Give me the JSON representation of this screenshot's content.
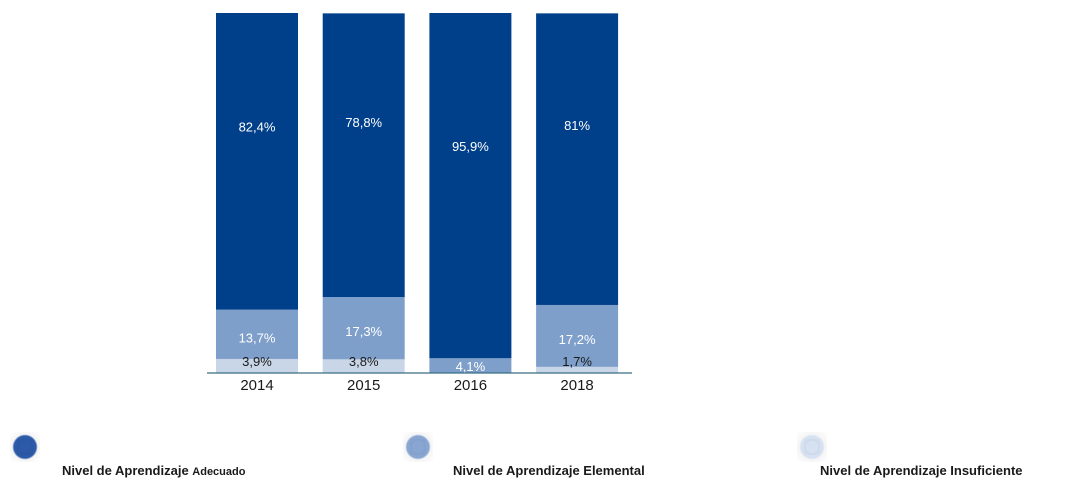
{
  "chart_data": {
    "type": "bar",
    "stacked": true,
    "normalized": true,
    "categories": [
      "2014",
      "2015",
      "2016",
      "2018"
    ],
    "series": [
      {
        "name": "Nivel de Aprendizaje Insuficiente",
        "color": "#c9d6e8",
        "values": [
          3.9,
          3.8,
          0,
          1.7
        ],
        "labels": [
          "3,9%",
          "3,8%",
          "",
          "1,7%"
        ]
      },
      {
        "name": "Nivel de Aprendizaje Elemental",
        "color": "#7f9fcb",
        "values": [
          13.7,
          17.3,
          4.1,
          17.2
        ],
        "labels": [
          "13,7%",
          "17,3%",
          "4,1%",
          "17,2%"
        ]
      },
      {
        "name": "Nivel de Aprendizaje Adecuado",
        "color": "#003f8a",
        "values": [
          82.4,
          78.8,
          95.9,
          81
        ],
        "labels": [
          "82,4%",
          "78,8%",
          "95,9%",
          "81%"
        ]
      }
    ],
    "ylim": [
      0,
      100
    ],
    "grid": false
  },
  "legend": {
    "items": [
      {
        "main": "Nivel de Aprendizaje ",
        "small": "Adecuado",
        "color": "#2c5aa8"
      },
      {
        "main": "Nivel de Aprendizaje Elemental",
        "small": "",
        "color": "#89a6d3"
      },
      {
        "main": "Nivel de Aprendizaje Insuficiente",
        "small": "",
        "color": "#d6e1f2"
      }
    ]
  }
}
